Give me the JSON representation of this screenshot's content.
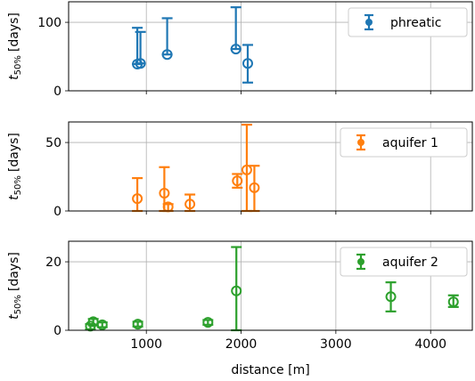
{
  "chart_data": [
    {
      "type": "scatter",
      "error_bars": true,
      "color": "#1f77b4",
      "series": [
        {
          "name": "phreatic",
          "points": [
            {
              "x": 905,
              "y": 39,
              "yerr_low": 39,
              "yerr_high": 92
            },
            {
              "x": 938,
              "y": 40,
              "yerr_low": 40,
              "yerr_high": 86
            },
            {
              "x": 1220,
              "y": 53,
              "yerr_low": 53,
              "yerr_high": 106
            },
            {
              "x": 1945,
              "y": 61,
              "yerr_low": 61,
              "yerr_high": 122
            },
            {
              "x": 2070,
              "y": 40,
              "yerr_low": 12,
              "yerr_high": 67
            }
          ]
        }
      ],
      "ylim": [
        0,
        130
      ],
      "yticks": [
        0,
        100
      ],
      "ylabel": "t",
      "ylabel_sub": "50%",
      "ylabel_unit": "[days]",
      "legend": "upper right",
      "grid": true
    },
    {
      "type": "scatter",
      "error_bars": true,
      "color": "#ff7f0e",
      "series": [
        {
          "name": "aquifer 1",
          "points": [
            {
              "x": 905,
              "y": 9,
              "yerr_low": 0,
              "yerr_high": 24
            },
            {
              "x": 1190,
              "y": 13,
              "yerr_low": 0,
              "yerr_high": 32
            },
            {
              "x": 1230,
              "y": 3,
              "yerr_low": 0,
              "yerr_high": 5
            },
            {
              "x": 1460,
              "y": 5,
              "yerr_low": 0,
              "yerr_high": 12
            },
            {
              "x": 1960,
              "y": 22,
              "yerr_low": 17,
              "yerr_high": 27
            },
            {
              "x": 2060,
              "y": 30,
              "yerr_low": 0,
              "yerr_high": 63
            },
            {
              "x": 2140,
              "y": 17,
              "yerr_low": 0,
              "yerr_high": 33
            }
          ]
        }
      ],
      "ylim": [
        0,
        65
      ],
      "yticks": [
        0,
        50
      ],
      "ylabel": "t",
      "ylabel_sub": "50%",
      "ylabel_unit": "[days]",
      "legend": "upper right",
      "grid": true
    },
    {
      "type": "scatter",
      "error_bars": true,
      "color": "#2ca02c",
      "series": [
        {
          "name": "aquifer 2",
          "points": [
            {
              "x": 410,
              "y": 1.2,
              "yerr_low": 0.3,
              "yerr_high": 1.8
            },
            {
              "x": 440,
              "y": 2.5,
              "yerr_low": 1.4,
              "yerr_high": 3.3
            },
            {
              "x": 535,
              "y": 1.6,
              "yerr_low": 0.9,
              "yerr_high": 2.3
            },
            {
              "x": 910,
              "y": 1.8,
              "yerr_low": 1.1,
              "yerr_high": 2.5
            },
            {
              "x": 1650,
              "y": 2.3,
              "yerr_low": 1.6,
              "yerr_high": 3.0
            },
            {
              "x": 1950,
              "y": 11.5,
              "yerr_low": 0,
              "yerr_high": 24.3
            },
            {
              "x": 3580,
              "y": 9.8,
              "yerr_low": 5.5,
              "yerr_high": 14
            },
            {
              "x": 4240,
              "y": 8.3,
              "yerr_low": 6.8,
              "yerr_high": 10.2
            }
          ]
        }
      ],
      "ylim": [
        0,
        26
      ],
      "yticks": [
        0,
        20
      ],
      "xlim": [
        180,
        4440
      ],
      "xticks": [
        1000,
        2000,
        3000,
        4000
      ],
      "xlabel": "distance [m]",
      "ylabel": "t",
      "ylabel_sub": "50%",
      "ylabel_unit": "[days]",
      "legend": "upper right",
      "grid": true
    }
  ]
}
